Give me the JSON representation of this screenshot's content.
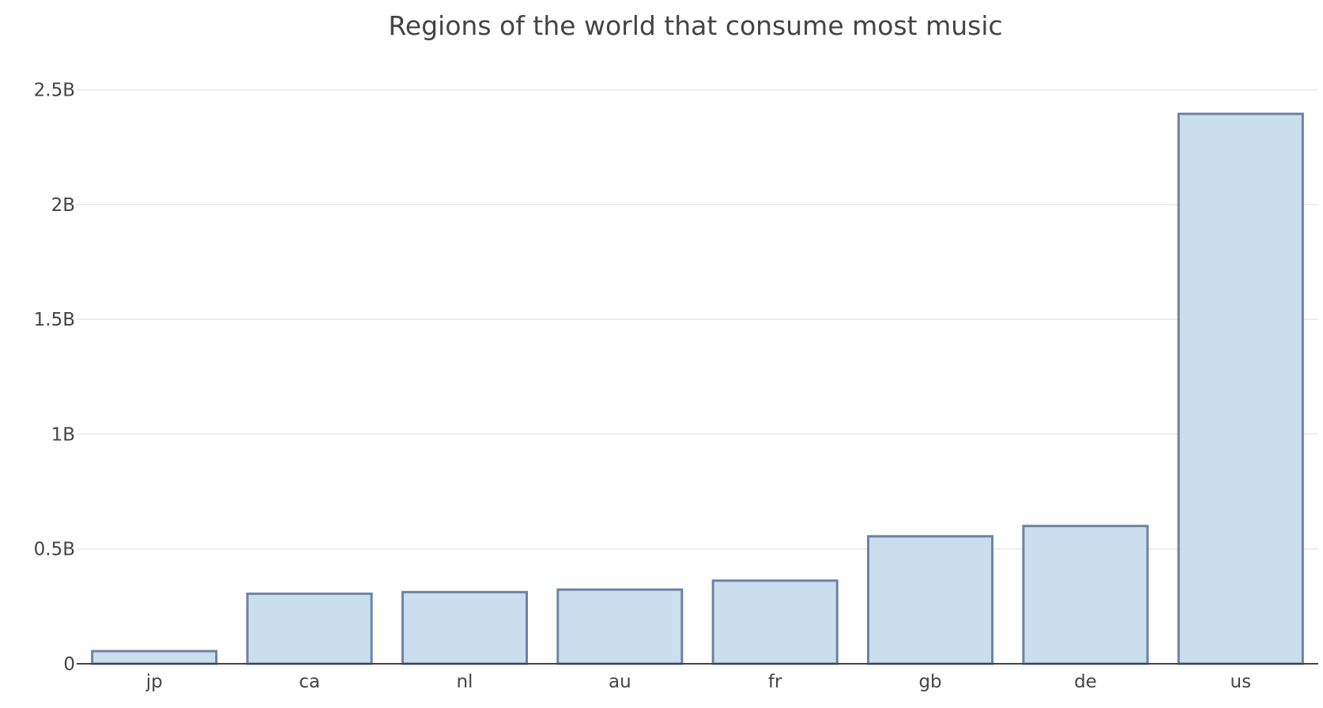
{
  "chart_data": {
    "type": "bar",
    "title": "Regions of the world that consume most music",
    "xlabel": "",
    "ylabel": "",
    "categories": [
      "jp",
      "ca",
      "nl",
      "au",
      "fr",
      "gb",
      "de",
      "us"
    ],
    "values": [
      55000000,
      305000000,
      312000000,
      323000000,
      362000000,
      555000000,
      600000000,
      2395000000
    ],
    "ylim": [
      0,
      2650000000
    ],
    "yticks": [
      0,
      500000000,
      1000000000,
      1500000000,
      2000000000,
      2500000000
    ],
    "ytick_labels": [
      "0",
      "0.5B",
      "1B",
      "1.5B",
      "2B",
      "2.5B"
    ],
    "grid": true,
    "colors": {
      "bar_fill": "#cadeee",
      "bar_stroke": "#6e82a4",
      "grid": "#e8e8e8",
      "text": "#444444"
    }
  }
}
